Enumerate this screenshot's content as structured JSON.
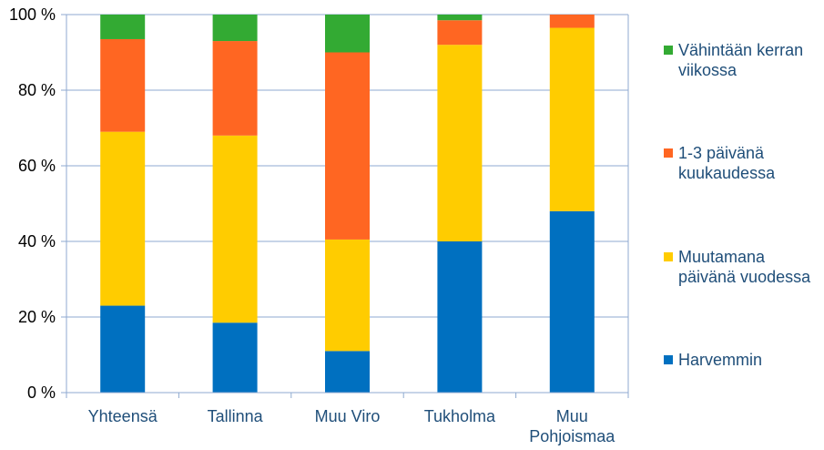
{
  "chart_data": {
    "type": "bar",
    "stacked": true,
    "normalized": true,
    "categories": [
      "Yhteensä",
      "Tallinna",
      "Muu Viro",
      "Tukholma",
      "Muu Pohjoismaa"
    ],
    "series": [
      {
        "name": "Harvemmin",
        "color": "#0070C0",
        "values": [
          23,
          18.5,
          11,
          40,
          48
        ]
      },
      {
        "name": "Muutamana päivänä vuodessa",
        "color": "#FFCC00",
        "values": [
          46,
          49.5,
          29.5,
          52,
          48.5
        ]
      },
      {
        "name": "1-3 päivänä kuukaudessa",
        "color": "#FF6622",
        "values": [
          24.5,
          25,
          49.5,
          6.5,
          3.5
        ]
      },
      {
        "name": "Vähintään kerran viikossa",
        "color": "#33AA33",
        "values": [
          6.5,
          7,
          10,
          1.5,
          0
        ]
      }
    ],
    "yticks": [
      "0 %",
      "20 %",
      "40 %",
      "60 %",
      "80 %",
      "100 %"
    ],
    "ylim": [
      0,
      100
    ],
    "grid": true,
    "legend_position": "right",
    "legend_order": [
      "Vähintään kerran viikossa",
      "1-3 päivänä kuukaudessa",
      "Muutamana päivänä vuodessa",
      "Harvemmin"
    ]
  }
}
